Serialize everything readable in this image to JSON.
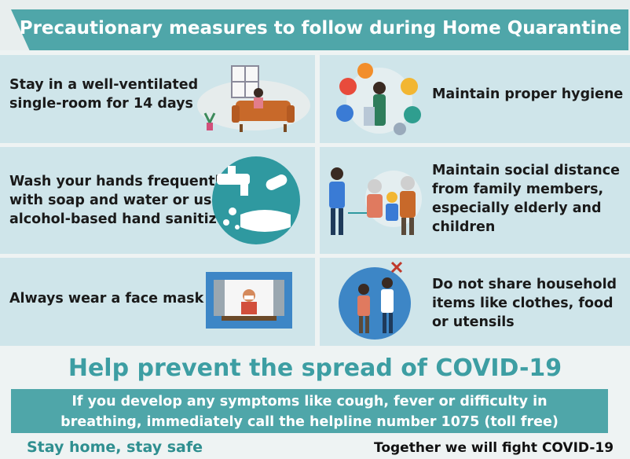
{
  "title": "Precautionary measures to follow during Home Quarantine",
  "measures": [
    {
      "lines": [
        "Stay in a well-ventilated",
        "single-room for 14 days"
      ],
      "icon": "room-icon"
    },
    {
      "lines": [
        "Maintain proper hygiene"
      ],
      "icon": "hygiene-icon"
    },
    {
      "lines": [
        "Wash your hands frequently",
        "with soap and water or use",
        "alcohol-based hand sanitizer"
      ],
      "icon": "handwash-icon"
    },
    {
      "lines": [
        "Maintain social distance",
        "from family members,",
        "especially elderly and",
        "children"
      ],
      "icon": "social-distance-icon"
    },
    {
      "lines": [
        "Always wear a face mask"
      ],
      "icon": "face-mask-icon"
    },
    {
      "lines": [
        "Do not share household",
        "items like clothes, food",
        "or utensils"
      ],
      "icon": "no-sharing-icon"
    }
  ],
  "headline": "Help prevent the spread of COVID-19",
  "helpline": [
    "If you develop any symptoms like cough, fever or difficulty in",
    "breathing, immediately call the helpline number 1075 (toll free)"
  ],
  "footer": {
    "left": "Stay home, stay safe",
    "right": "Together we will fight COVID-19"
  },
  "colors": {
    "accent": "#4fa6a9",
    "panel": "#cfe5ea",
    "headline": "#3d9ea3"
  }
}
